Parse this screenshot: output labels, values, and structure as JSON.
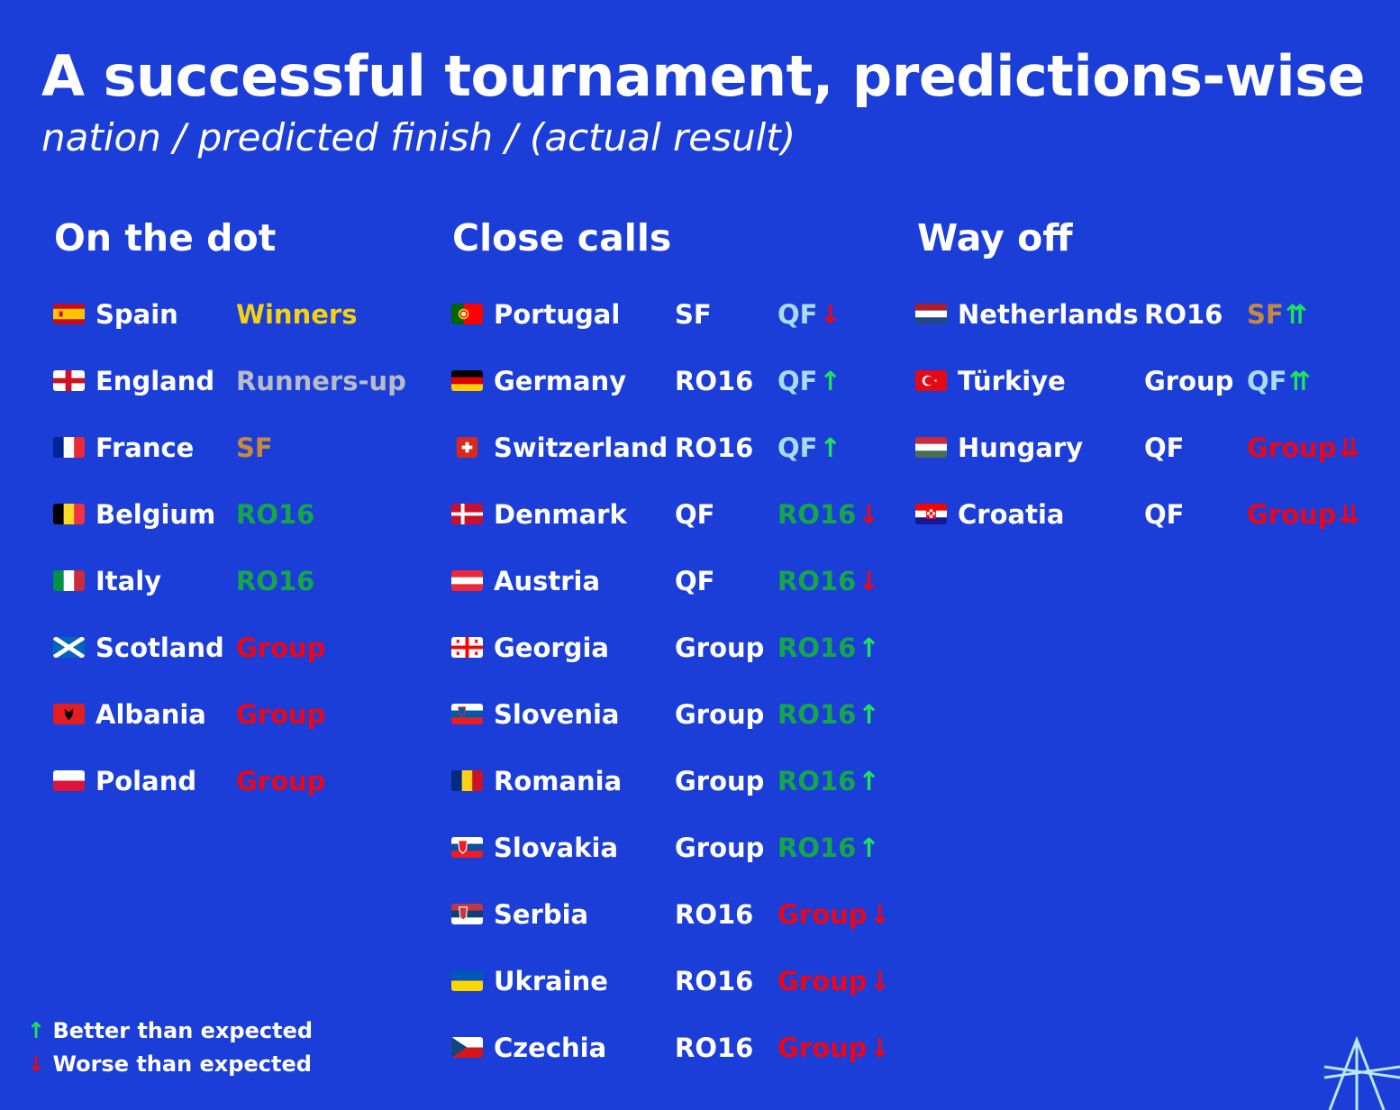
{
  "title": "A successful tournament, predictions-wise",
  "subtitle": "nation / predicted finish / (actual result)",
  "colors": {
    "background": "#1b3ed8",
    "winners": "#f5d20f",
    "runners_up": "#b8bcc6",
    "sf": "#c78a3c",
    "qf": "#a8dcf4",
    "ro16": "#16a64a",
    "group": "#e8071b",
    "better": "#1de55a",
    "worse": "#e8071b"
  },
  "columns": [
    {
      "heading": "On the dot",
      "rows": [
        {
          "nation": "Spain",
          "flag": "spain-flag-icon",
          "predicted": "",
          "actual": "Winners",
          "actual_class": "winners",
          "arrow": ""
        },
        {
          "nation": "England",
          "flag": "england-flag-icon",
          "predicted": "",
          "actual": "Runners-up",
          "actual_class": "runners_up",
          "arrow": ""
        },
        {
          "nation": "France",
          "flag": "france-flag-icon",
          "predicted": "",
          "actual": "SF",
          "actual_class": "sf",
          "arrow": ""
        },
        {
          "nation": "Belgium",
          "flag": "belgium-flag-icon",
          "predicted": "",
          "actual": "RO16",
          "actual_class": "ro16",
          "arrow": ""
        },
        {
          "nation": "Italy",
          "flag": "italy-flag-icon",
          "predicted": "",
          "actual": "RO16",
          "actual_class": "ro16",
          "arrow": ""
        },
        {
          "nation": "Scotland",
          "flag": "scotland-flag-icon",
          "predicted": "",
          "actual": "Group",
          "actual_class": "group",
          "arrow": ""
        },
        {
          "nation": "Albania",
          "flag": "albania-flag-icon",
          "predicted": "",
          "actual": "Group",
          "actual_class": "group",
          "arrow": ""
        },
        {
          "nation": "Poland",
          "flag": "poland-flag-icon",
          "predicted": "",
          "actual": "Group",
          "actual_class": "group",
          "arrow": ""
        }
      ]
    },
    {
      "heading": "Close calls",
      "rows": [
        {
          "nation": "Portugal",
          "flag": "portugal-flag-icon",
          "predicted": "SF",
          "actual": "QF",
          "actual_class": "qf",
          "arrow": "↓"
        },
        {
          "nation": "Germany",
          "flag": "germany-flag-icon",
          "predicted": "RO16",
          "actual": "QF",
          "actual_class": "qf",
          "arrow": "↑"
        },
        {
          "nation": "Switzerland",
          "flag": "switzerland-flag-icon",
          "predicted": "RO16",
          "actual": "QF",
          "actual_class": "qf",
          "arrow": "↑"
        },
        {
          "nation": "Denmark",
          "flag": "denmark-flag-icon",
          "predicted": "QF",
          "actual": "RO16",
          "actual_class": "ro16",
          "arrow": "↓"
        },
        {
          "nation": "Austria",
          "flag": "austria-flag-icon",
          "predicted": "QF",
          "actual": "RO16",
          "actual_class": "ro16",
          "arrow": "↓"
        },
        {
          "nation": "Georgia",
          "flag": "georgia-flag-icon",
          "predicted": "Group",
          "actual": "RO16",
          "actual_class": "ro16",
          "arrow": "↑"
        },
        {
          "nation": "Slovenia",
          "flag": "slovenia-flag-icon",
          "predicted": "Group",
          "actual": "RO16",
          "actual_class": "ro16",
          "arrow": "↑"
        },
        {
          "nation": "Romania",
          "flag": "romania-flag-icon",
          "predicted": "Group",
          "actual": "RO16",
          "actual_class": "ro16",
          "arrow": "↑"
        },
        {
          "nation": "Slovakia",
          "flag": "slovakia-flag-icon",
          "predicted": "Group",
          "actual": "RO16",
          "actual_class": "ro16",
          "arrow": "↑"
        },
        {
          "nation": "Serbia",
          "flag": "serbia-flag-icon",
          "predicted": "RO16",
          "actual": "Group",
          "actual_class": "group",
          "arrow": "↓"
        },
        {
          "nation": "Ukraine",
          "flag": "ukraine-flag-icon",
          "predicted": "RO16",
          "actual": "Group",
          "actual_class": "group",
          "arrow": "↓"
        },
        {
          "nation": "Czechia",
          "flag": "czechia-flag-icon",
          "predicted": "RO16",
          "actual": "Group",
          "actual_class": "group",
          "arrow": "↓"
        }
      ]
    },
    {
      "heading": "Way off",
      "rows": [
        {
          "nation": "Netherlands",
          "flag": "netherlands-flag-icon",
          "predicted": "RO16",
          "actual": "SF",
          "actual_class": "sf",
          "arrow": "⇈"
        },
        {
          "nation": "Türkiye",
          "flag": "turkiye-flag-icon",
          "predicted": "Group",
          "actual": "QF",
          "actual_class": "qf",
          "arrow": "⇈"
        },
        {
          "nation": "Hungary",
          "flag": "hungary-flag-icon",
          "predicted": "QF",
          "actual": "Group",
          "actual_class": "group",
          "arrow": "⇊"
        },
        {
          "nation": "Croatia",
          "flag": "croatia-flag-icon",
          "predicted": "QF",
          "actual": "Group",
          "actual_class": "group",
          "arrow": "⇊"
        }
      ]
    }
  ],
  "legend": {
    "better_arrow": "↑",
    "better_label": "Better than expected",
    "worse_arrow": "↓",
    "worse_label": "Worse than expected"
  },
  "logo_icon": "star-logo-icon"
}
